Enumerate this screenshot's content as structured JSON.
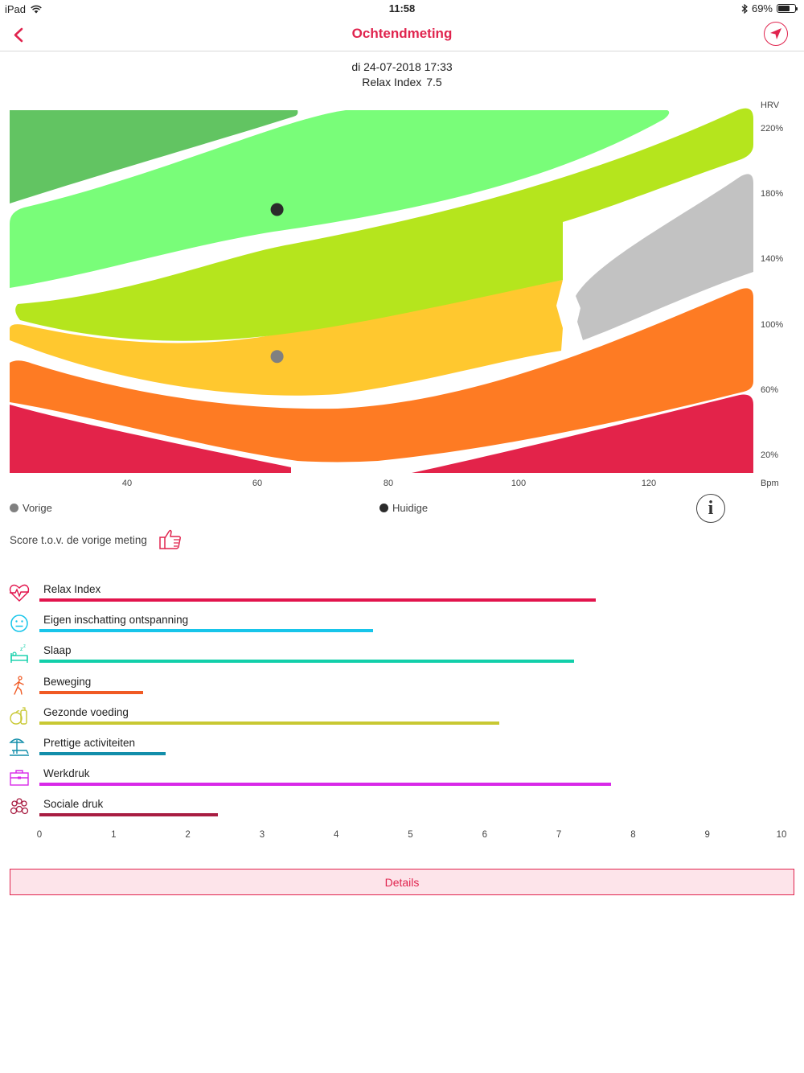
{
  "status_bar": {
    "device": "iPad",
    "time": "11:58",
    "battery": "69%",
    "battery_level": 0.69
  },
  "nav": {
    "title": "Ochtendmeting"
  },
  "measurement": {
    "datetime": "di 24-07-2018 17:33",
    "relax_label": "Relax Index",
    "relax_value": "7.5"
  },
  "zone_chart": {
    "y_axis_title": "HRV",
    "y_ticks": [
      "220%",
      "180%",
      "140%",
      "100%",
      "60%",
      "20%"
    ],
    "x_axis_title": "Bpm",
    "x_ticks": [
      "40",
      "60",
      "80",
      "100",
      "120"
    ],
    "colors": {
      "dark_green": "#62c462",
      "light_green": "#79fd79",
      "lime": "#b5e51d",
      "yellow": "#ffc82f",
      "gray": "#c2c2c2",
      "orange": "#fe7b23",
      "red": "#e3234a"
    },
    "points": [
      {
        "name": "Huidige",
        "bpm": 63,
        "hrv_pct": 170,
        "color": "#2b2b2b"
      },
      {
        "name": "Vorige",
        "bpm": 63,
        "hrv_pct": 80,
        "color": "#808080"
      }
    ]
  },
  "legend": {
    "previous": "Vorige",
    "current": "Huidige"
  },
  "score": {
    "label": "Score t.o.v. de vorige meting"
  },
  "chart_data": {
    "type": "bar",
    "categories": [
      "Relax Index",
      "Eigen inschatting ontspanning",
      "Slaap",
      "Beweging",
      "Gezonde voeding",
      "Prettige activiteiten",
      "Werkdruk",
      "Sociale druk"
    ],
    "values": [
      7.5,
      4.5,
      7.2,
      1.4,
      6.2,
      1.7,
      7.7,
      2.4
    ],
    "colors": [
      "#e2144c",
      "#17c5ea",
      "#12cfaa",
      "#f05a24",
      "#c8c832",
      "#128eaa",
      "#d829e8",
      "#a81d42"
    ],
    "icons": [
      "heart-pulse-icon",
      "neutral-face-icon",
      "bed-sleep-icon",
      "walking-person-icon",
      "food-icon",
      "beach-chair-icon",
      "briefcase-icon",
      "people-group-icon"
    ],
    "xlim": [
      0,
      10
    ],
    "x_ticks": [
      "0",
      "1",
      "2",
      "3",
      "4",
      "5",
      "6",
      "7",
      "8",
      "9",
      "10"
    ]
  },
  "buttons": {
    "details": "Details"
  }
}
